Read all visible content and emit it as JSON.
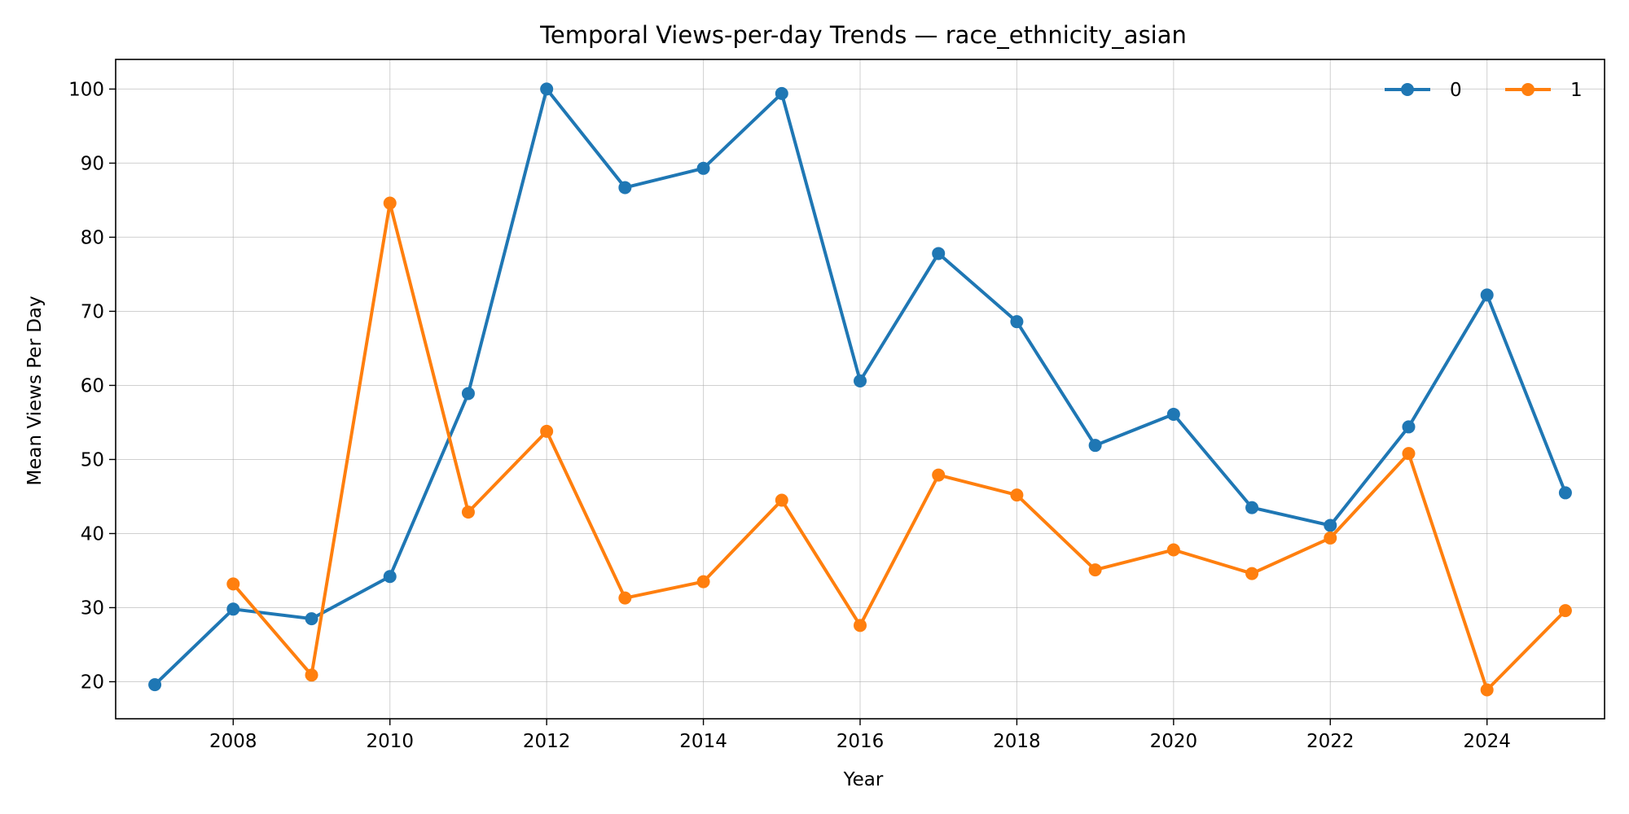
{
  "chart_data": {
    "type": "line",
    "title": "Temporal Views-per-day Trends — race_ethnicity_asian",
    "xlabel": "Year",
    "ylabel": "Mean Views Per Day",
    "xlim": [
      2006.5,
      2025.5
    ],
    "ylim": [
      15,
      104
    ],
    "xticks": [
      2008,
      2010,
      2012,
      2014,
      2016,
      2018,
      2020,
      2022,
      2024
    ],
    "yticks": [
      20,
      30,
      40,
      50,
      60,
      70,
      80,
      90,
      100
    ],
    "grid": true,
    "legend_position": "top-right",
    "series": [
      {
        "name": "0",
        "color": "#1f77b4",
        "x": [
          2007,
          2008,
          2009,
          2010,
          2011,
          2012,
          2013,
          2014,
          2015,
          2016,
          2017,
          2018,
          2019,
          2020,
          2021,
          2022,
          2023,
          2024,
          2025
        ],
        "y": [
          19.6,
          29.8,
          28.5,
          34.2,
          58.9,
          100.0,
          86.7,
          89.3,
          99.4,
          60.6,
          77.8,
          68.6,
          51.9,
          56.1,
          43.5,
          41.1,
          54.4,
          72.2,
          45.5
        ]
      },
      {
        "name": "1",
        "color": "#ff7f0e",
        "x": [
          2008,
          2009,
          2010,
          2011,
          2012,
          2013,
          2014,
          2015,
          2016,
          2017,
          2018,
          2019,
          2020,
          2021,
          2022,
          2023,
          2024,
          2025
        ],
        "y": [
          33.2,
          20.9,
          84.6,
          42.9,
          53.8,
          31.3,
          33.5,
          44.5,
          27.6,
          47.9,
          45.2,
          35.1,
          37.8,
          34.6,
          39.4,
          50.8,
          18.9,
          29.6
        ]
      }
    ]
  }
}
